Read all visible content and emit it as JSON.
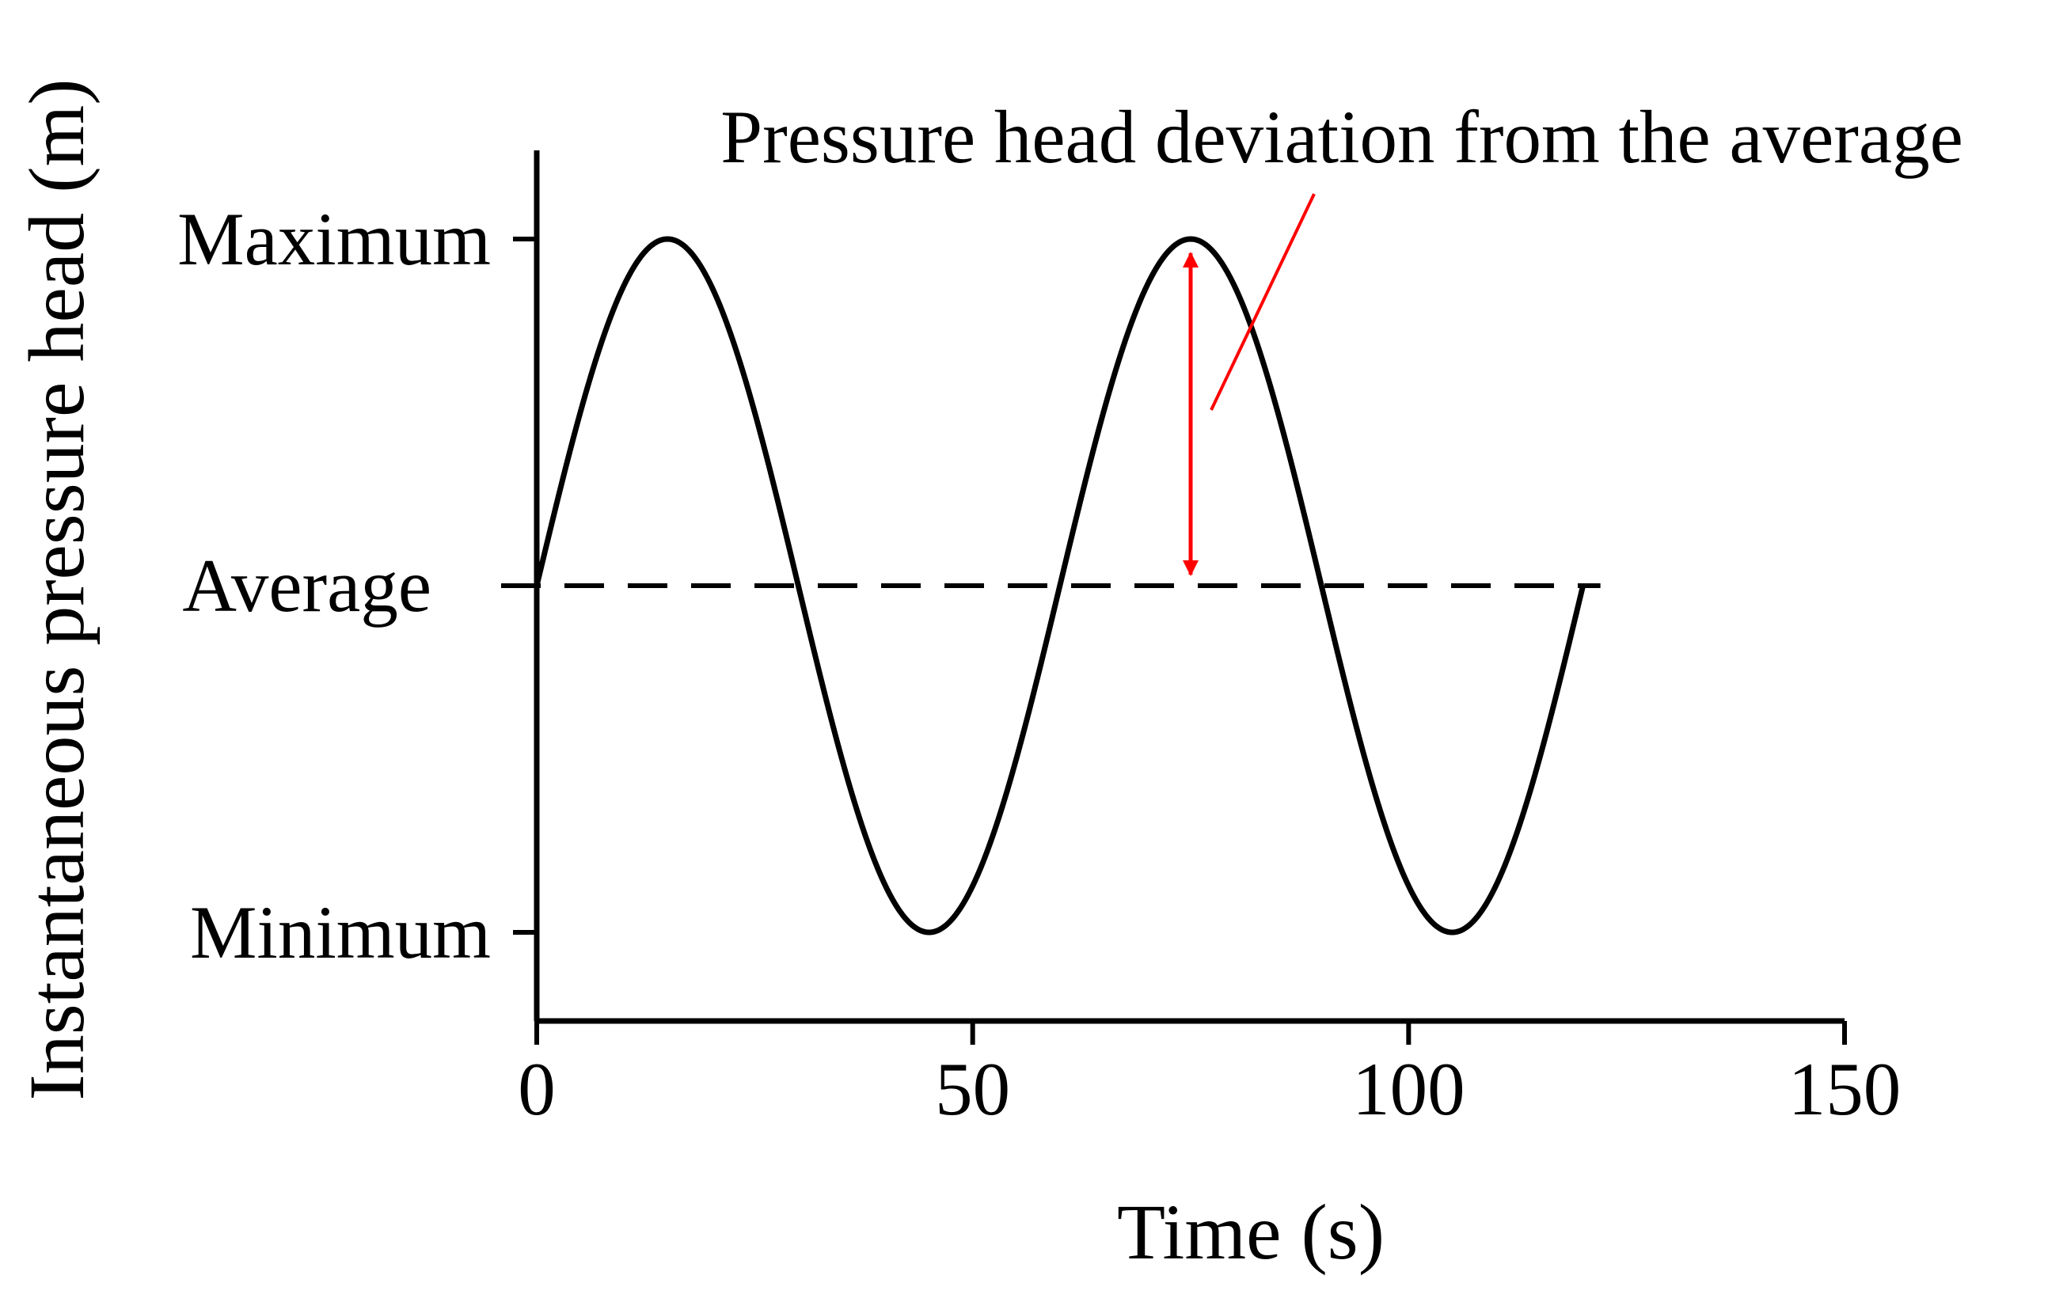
{
  "chart_data": {
    "type": "line",
    "title": "",
    "xlabel": "Time (s)",
    "ylabel": "Instantaneous pressure head (m)",
    "xlim": [
      0,
      150
    ],
    "ylim": [
      -1.27,
      1.0
    ],
    "x_ticks": [
      0,
      50,
      100,
      150
    ],
    "x_tick_labels": [
      "0",
      "50",
      "100",
      "150"
    ],
    "y_ticks": [
      {
        "label": "Maximum",
        "value": 1
      },
      {
        "label": "Average",
        "value": 0
      },
      {
        "label": "Minimum",
        "value": -1
      }
    ],
    "grid": false,
    "legend": "none",
    "series": [
      {
        "style": "solid",
        "color": "#000000",
        "function": "sine",
        "period": 60,
        "amplitude": 1,
        "x_start": 0,
        "x_end": 120
      }
    ],
    "reference_lines": [
      {
        "style": "dashed",
        "color": "#000000",
        "y": 0,
        "x_start": 0,
        "x_end": 122
      }
    ],
    "annotation": {
      "text": "Pressure head deviation from the average",
      "color": "#ff0000",
      "arrow_x": 75,
      "arrow_from": 0,
      "arrow_to": 1
    }
  }
}
